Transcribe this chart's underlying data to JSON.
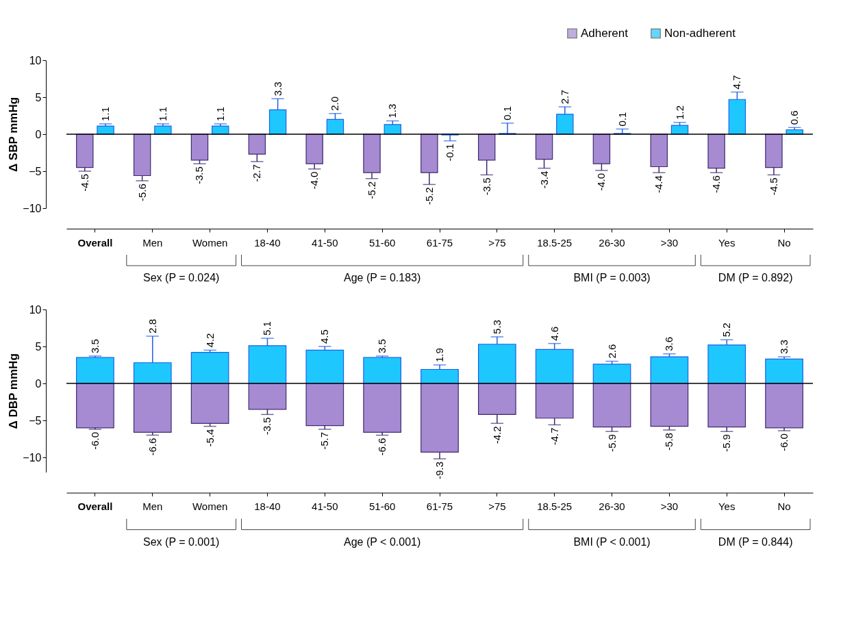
{
  "chart_data": [
    {
      "type": "bar",
      "ylabel": "Δ SBP mmHg",
      "categories": [
        "Overall",
        "Men",
        "Women",
        "18-40",
        "41-50",
        "51-60",
        "61-75",
        ">75",
        "18.5-25",
        "26-30",
        ">30",
        "Yes",
        "No"
      ],
      "series": [
        {
          "name": "Adherent",
          "color": "#a68bd3",
          "values": [
            -4.5,
            -5.6,
            -3.5,
            -2.7,
            -4.0,
            -5.2,
            -5.2,
            -3.5,
            -3.4,
            -4.0,
            -4.4,
            -4.6,
            -4.5
          ],
          "value_labels": [
            "-4.5",
            "-5.6",
            "-3.5",
            "-2.7",
            "-4.0",
            "-5.2",
            "-5.2",
            "-3.5",
            "-3.4",
            "-4.0",
            "-4.4",
            "-4.6",
            "-4.5"
          ],
          "errors": [
            [
              -5.0,
              -4.5
            ],
            [
              -6.3,
              -5.6
            ],
            [
              -4.0,
              -3.5
            ],
            [
              -3.7,
              -2.7
            ],
            [
              -4.7,
              -4.0
            ],
            [
              -6.0,
              -5.2
            ],
            [
              -6.8,
              -5.2
            ],
            [
              -5.5,
              -3.5
            ],
            [
              -4.6,
              -3.4
            ],
            [
              -4.9,
              -4.0
            ],
            [
              -5.2,
              -4.4
            ],
            [
              -5.2,
              -4.6
            ],
            [
              -5.5,
              -4.5
            ]
          ]
        },
        {
          "name": "Non-adherent",
          "color": "#1ec8ff",
          "values": [
            1.1,
            1.1,
            1.1,
            3.3,
            2.0,
            1.3,
            -0.1,
            0.1,
            2.7,
            0.1,
            1.2,
            4.7,
            0.6
          ],
          "value_labels": [
            "1.1",
            "1.1",
            "1.1",
            "3.3",
            "2.0",
            "1.3",
            "-0.1",
            "0.1",
            "2.7",
            "0.1",
            "1.2",
            "4.7",
            "0.6"
          ],
          "errors": [
            [
              1.1,
              1.4
            ],
            [
              1.1,
              1.4
            ],
            [
              1.1,
              1.4
            ],
            [
              3.3,
              4.8
            ],
            [
              2.0,
              2.8
            ],
            [
              1.3,
              1.8
            ],
            [
              -0.9,
              -0.1
            ],
            [
              0.1,
              1.5
            ],
            [
              2.7,
              3.7
            ],
            [
              0.1,
              0.7
            ],
            [
              1.2,
              1.6
            ],
            [
              4.7,
              5.7
            ],
            [
              0.6,
              0.9
            ]
          ]
        }
      ],
      "ylim": [
        -10,
        10
      ],
      "yticks": [
        -10,
        -5,
        0,
        5,
        10
      ],
      "grid": false,
      "legend": "top right",
      "ref_lines": [
        {
          "axis": "y",
          "value": 0
        }
      ],
      "annotations": [
        "Sex (P = 0.024)",
        "Age (P = 0.183)",
        "BMI (P = 0.003)",
        "DM (P = 0.892)"
      ]
    },
    {
      "type": "bar",
      "ylabel": "Δ DBP mmHg",
      "stacked": true,
      "categories": [
        "Overall",
        "Men",
        "Women",
        "18-40",
        "41-50",
        "51-60",
        "61-75",
        ">75",
        "18.5-25",
        "26-30",
        ">30",
        "Yes",
        "No"
      ],
      "series": [
        {
          "color": "#a68bd3",
          "values": [
            -6.0,
            -6.6,
            -5.4,
            -3.5,
            -5.7,
            -6.6,
            -9.3,
            -4.2,
            -4.7,
            -5.9,
            -5.8,
            -5.9,
            -6.0
          ],
          "value_labels": [
            "-6.0",
            "-6.6",
            "-5.4",
            "-3.5",
            "-5.7",
            "-6.6",
            "-9.3",
            "-4.2",
            "-4.7",
            "-5.9",
            "-5.8",
            "-5.9",
            "-6.0"
          ],
          "errors": [
            [
              -6.2,
              -6.0
            ],
            [
              -7.0,
              -6.6
            ],
            [
              -5.8,
              -5.4
            ],
            [
              -4.2,
              -3.5
            ],
            [
              -6.2,
              -5.7
            ],
            [
              -7.0,
              -6.6
            ],
            [
              -10.2,
              -9.3
            ],
            [
              -5.4,
              -4.2
            ],
            [
              -5.6,
              -4.7
            ],
            [
              -6.5,
              -5.9
            ],
            [
              -6.3,
              -5.8
            ],
            [
              -6.5,
              -5.9
            ],
            [
              -6.4,
              -6.0
            ]
          ]
        },
        {
          "color": "#1ec8ff",
          "values": [
            3.5,
            2.8,
            4.2,
            5.1,
            4.5,
            3.5,
            1.9,
            5.3,
            4.6,
            2.6,
            3.6,
            5.2,
            3.3
          ],
          "value_labels": [
            "3.5",
            "2.8",
            "4.2",
            "5.1",
            "4.5",
            "3.5",
            "1.9",
            "5.3",
            "4.6",
            "2.6",
            "3.6",
            "5.2",
            "3.3"
          ],
          "errors": [
            [
              3.5,
              3.7
            ],
            [
              2.8,
              6.4
            ],
            [
              4.2,
              4.5
            ],
            [
              5.1,
              6.1
            ],
            [
              4.5,
              5.0
            ],
            [
              3.5,
              3.7
            ],
            [
              1.9,
              2.5
            ],
            [
              5.3,
              6.3
            ],
            [
              4.6,
              5.4
            ],
            [
              2.6,
              3.0
            ],
            [
              3.6,
              4.0
            ],
            [
              5.2,
              5.9
            ],
            [
              3.3,
              3.6
            ]
          ]
        }
      ],
      "ylim": [
        -12,
        10
      ],
      "yticks": [
        -10,
        -5,
        0,
        5,
        10
      ],
      "grid": false,
      "ref_lines": [
        {
          "axis": "y",
          "value": 0
        }
      ],
      "annotations": [
        "Sex (P = 0.001)",
        "Age (P < 0.001)",
        "BMI (P < 0.001)",
        "DM (P = 0.844)"
      ]
    }
  ]
}
